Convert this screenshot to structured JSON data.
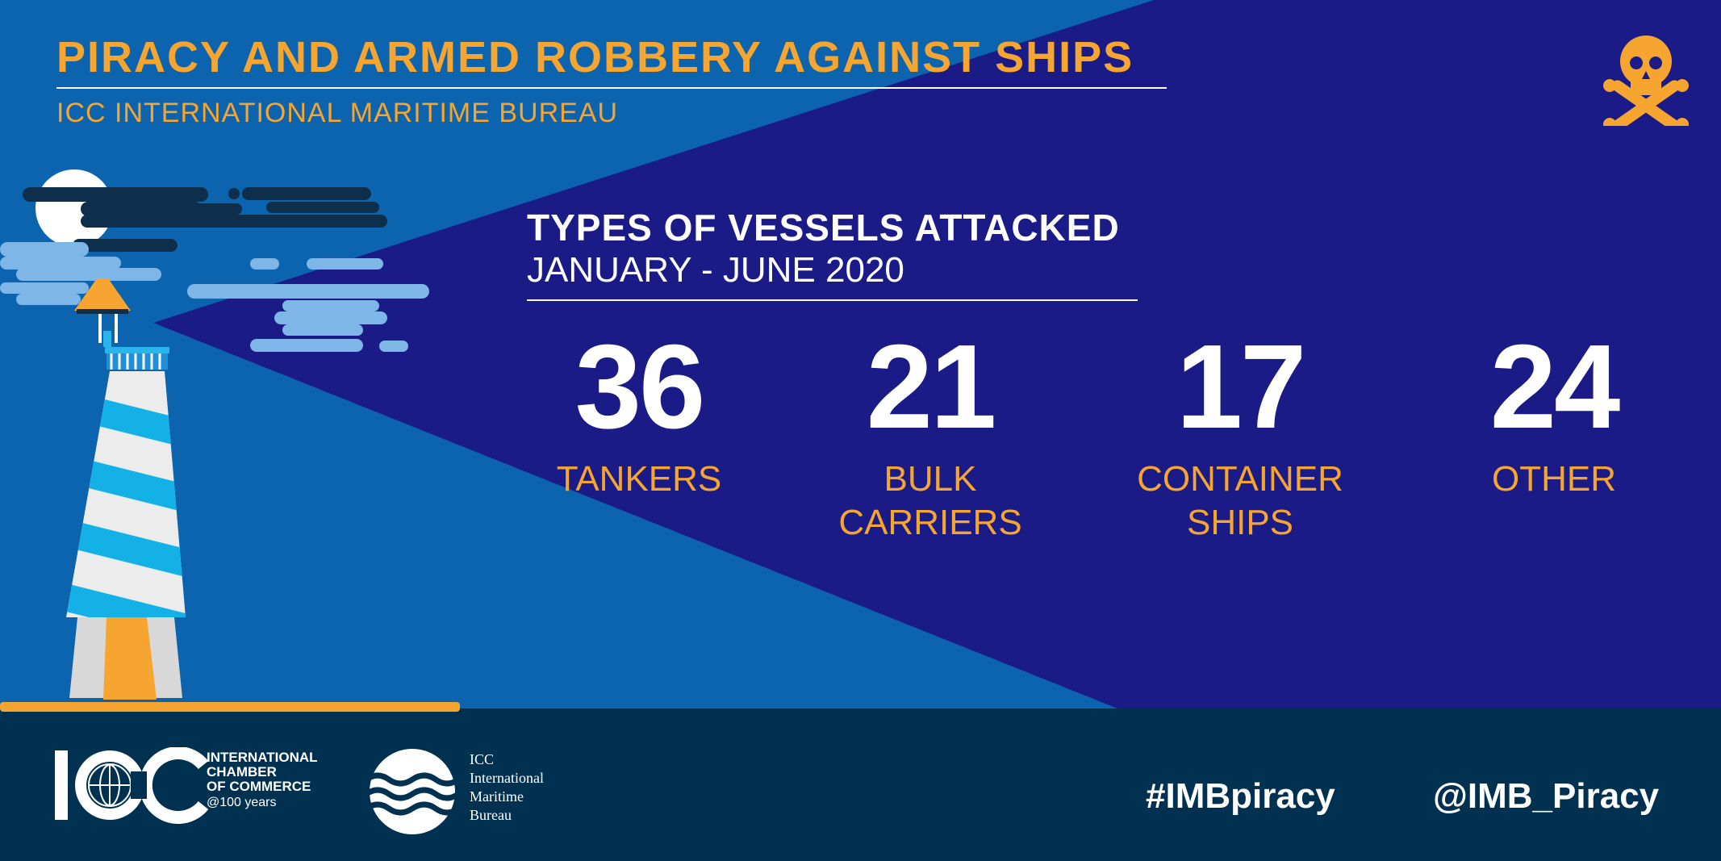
{
  "header": {
    "title": "PIRACY AND ARMED ROBBERY AGAINST SHIPS",
    "subtitle": "ICC INTERNATIONAL MARITIME BUREAU"
  },
  "section": {
    "title": "TYPES OF VESSELS ATTACKED",
    "period": "JANUARY - JUNE 2020"
  },
  "stats": [
    {
      "value": "36",
      "label": "TANKERS"
    },
    {
      "value": "21",
      "label": "BULK\nCARRIERS"
    },
    {
      "value": "17",
      "label": "CONTAINER\nSHIPS"
    },
    {
      "value": "24",
      "label": "OTHER"
    }
  ],
  "footer": {
    "icc_name": "INTERNATIONAL\nCHAMBER\nOF COMMERCE",
    "icc_anniversary": "@100 years",
    "imb_name": "ICC\nInternational\nMaritime\nBureau",
    "hashtag": "#IMBpiracy",
    "handle": "@IMB_Piracy"
  },
  "icons": {
    "skull": "skull-crossbones-icon",
    "lighthouse": "lighthouse-illustration",
    "icc_logo": "icc-globe-logo",
    "imb_logo": "imb-waves-logo"
  },
  "colors": {
    "accent_orange": "#f6a531",
    "deep_blue": "#1a1b87",
    "mid_blue": "#0b64ad",
    "footer_navy": "#003150",
    "white": "#ffffff"
  }
}
